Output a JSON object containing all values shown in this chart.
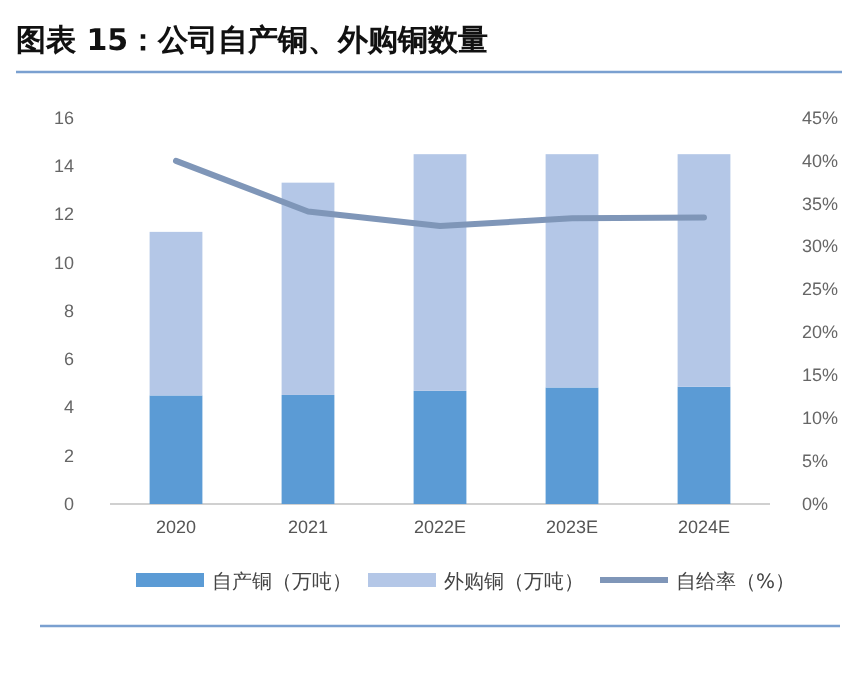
{
  "chart_data": {
    "type": "bar",
    "title": "图表 15：公司自产铜、外购铜数量",
    "categories": [
      "2020",
      "2021",
      "2022E",
      "2023E",
      "2024E"
    ],
    "stacked": true,
    "series": [
      {
        "name": "自产铜（万吨）",
        "color": "#5b9bd5",
        "values": [
          4.5,
          4.52,
          4.69,
          4.83,
          4.86
        ]
      },
      {
        "name": "外购铜（万吨）",
        "color": "#b4c7e7",
        "values": [
          6.78,
          8.8,
          9.81,
          9.67,
          9.64
        ]
      },
      {
        "name": "自给率（%）",
        "type": "line",
        "axis": "y2",
        "color": "#7f96b8",
        "values": [
          40.0,
          34.1,
          32.4,
          33.3,
          33.4
        ]
      }
    ],
    "ylim": [
      0,
      16
    ],
    "yticks": [
      0,
      2,
      4,
      6,
      8,
      10,
      12,
      14,
      16
    ],
    "y2lim": [
      0,
      45
    ],
    "y2ticks": [
      {
        "value": 0,
        "label": "0%"
      },
      {
        "value": 5,
        "label": "5%"
      },
      {
        "value": 10,
        "label": "10%"
      },
      {
        "value": 15,
        "label": "15%"
      },
      {
        "value": 20,
        "label": "20%"
      },
      {
        "value": 25,
        "label": "25%"
      },
      {
        "value": 30,
        "label": "30%"
      },
      {
        "value": 35,
        "label": "35%"
      },
      {
        "value": 40,
        "label": "40%"
      },
      {
        "value": 45,
        "label": "45%"
      }
    ],
    "legend": "bottom",
    "grid": false
  }
}
